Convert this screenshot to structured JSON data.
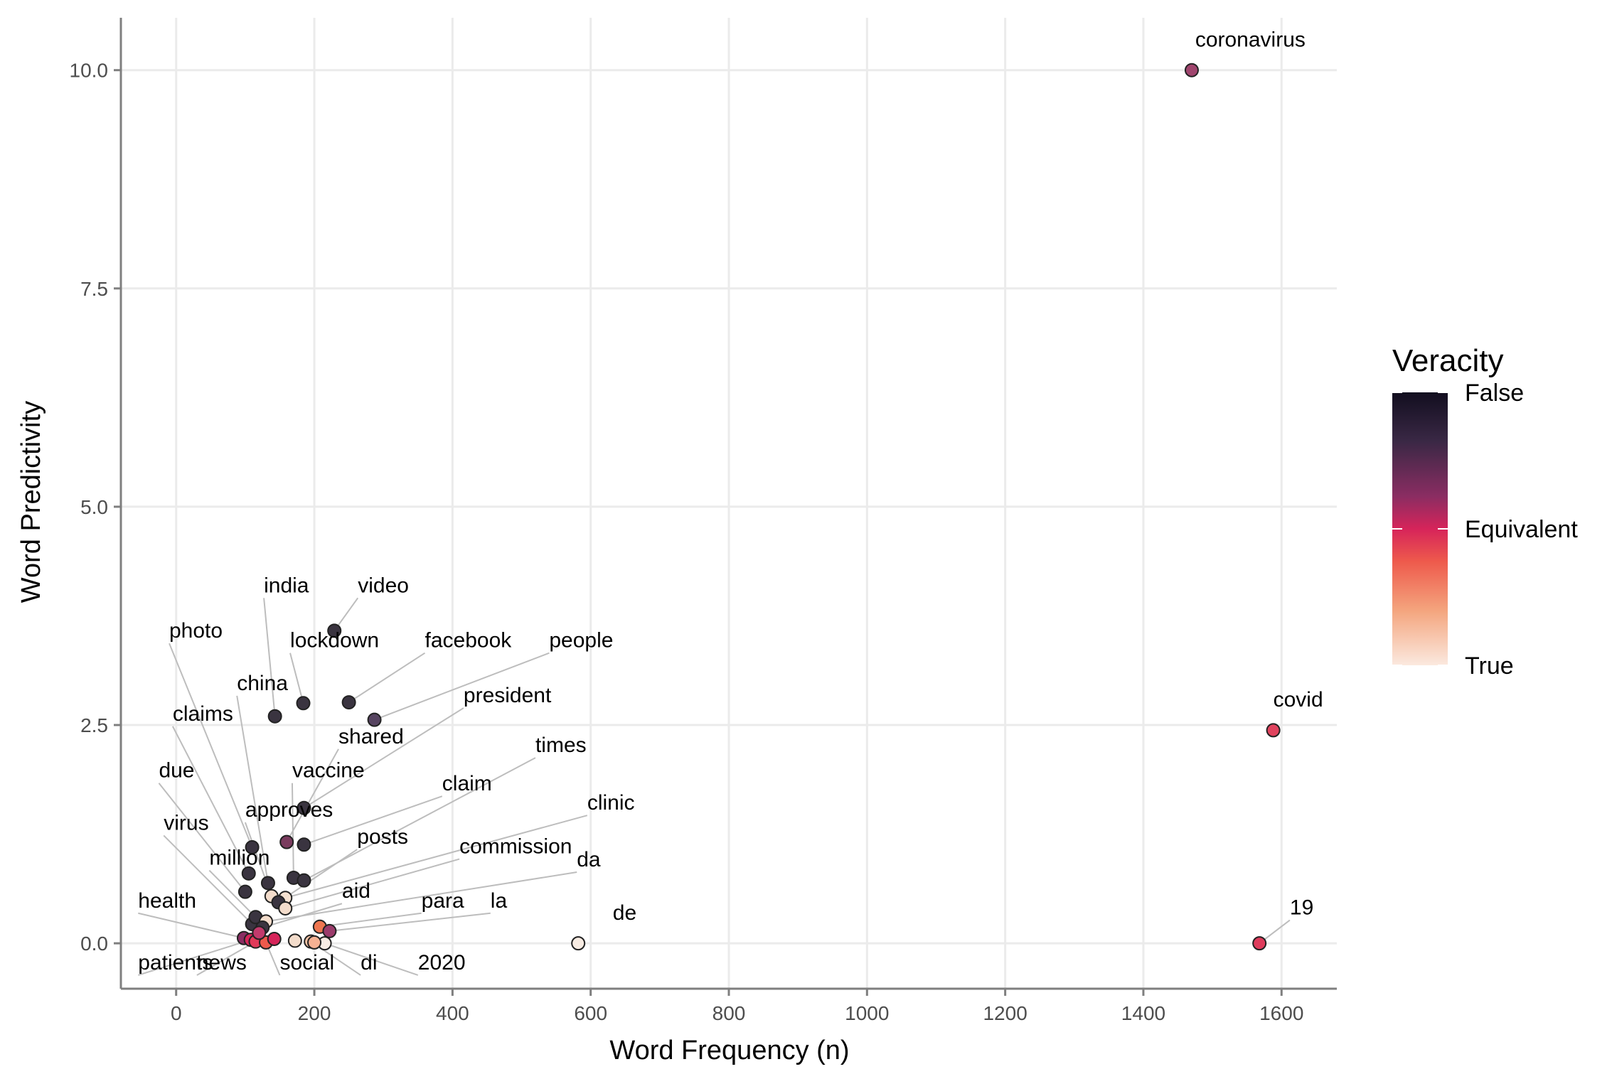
{
  "chart_data": {
    "type": "scatter",
    "xlabel": "Word Frequency (n)",
    "ylabel": "Word Predictivity",
    "xlim": [
      -80,
      1680
    ],
    "ylim": [
      -0.52,
      10.6
    ],
    "x_ticks": [
      0,
      200,
      400,
      600,
      800,
      1000,
      1200,
      1400,
      1600
    ],
    "x_tick_labels": [
      "0",
      "200",
      "400",
      "600",
      "800",
      "1000",
      "1200",
      "1400",
      "1600"
    ],
    "y_ticks": [
      0,
      2.5,
      5,
      7.5,
      10
    ],
    "y_tick_labels": [
      "0.0",
      "2.5",
      "5.0",
      "7.5",
      "10.0"
    ],
    "grid": true,
    "legend": {
      "title": "Veracity",
      "position": "right",
      "labels": [
        "False",
        "Equivalent",
        "True"
      ],
      "colors": [
        "#120e1f",
        "#3a2845",
        "#8a2d62",
        "#d6245a",
        "#ee5a4c",
        "#f4a57e",
        "#fbe9df"
      ]
    },
    "points": [
      {
        "word": "coronavirus",
        "x": 1470,
        "y": 10.0,
        "color": "#a0456e",
        "lx": 1475,
        "ly": 10.27,
        "leader": false
      },
      {
        "word": "covid",
        "x": 1588,
        "y": 2.44,
        "color": "#e0435e",
        "lx": 1588,
        "ly": 2.71,
        "leader": false
      },
      {
        "word": "19",
        "x": 1568,
        "y": 0.0,
        "color": "#df3c5c",
        "lx": 1612,
        "ly": 0.33,
        "leader": true
      },
      {
        "word": "de",
        "x": 582,
        "y": 0.0,
        "color": "#f8ece3",
        "lx": 632,
        "ly": 0.27,
        "leader": false
      },
      {
        "word": "video",
        "x": 229,
        "y": 3.58,
        "color": "#3a3440",
        "lx": 263,
        "ly": 4.02,
        "leader": true
      },
      {
        "word": "india",
        "x": 143,
        "y": 2.6,
        "color": "#3a3440",
        "lx": 127,
        "ly": 4.02,
        "leader": true
      },
      {
        "word": "lockdown",
        "x": 184,
        "y": 2.75,
        "color": "#3a3440",
        "lx": 165,
        "ly": 3.39,
        "leader": true
      },
      {
        "word": "facebook",
        "x": 250,
        "y": 2.76,
        "color": "#3a3440",
        "lx": 360,
        "ly": 3.39,
        "leader": true
      },
      {
        "word": "people",
        "x": 287,
        "y": 2.56,
        "color": "#574461",
        "lx": 540,
        "ly": 3.39,
        "leader": true
      },
      {
        "word": "president",
        "x": 185,
        "y": 1.55,
        "color": "#3a3440",
        "lx": 416,
        "ly": 2.76,
        "leader": true
      },
      {
        "word": "shared",
        "x": 160,
        "y": 1.16,
        "color": "#7a3b5e",
        "lx": 235,
        "ly": 2.29,
        "leader": true
      },
      {
        "word": "photo",
        "x": 110,
        "y": 1.1,
        "color": "#3a3440",
        "lx": -10,
        "ly": 3.5,
        "leader": true
      },
      {
        "word": "china",
        "x": 133,
        "y": 0.69,
        "color": "#3a3440",
        "lx": 88,
        "ly": 2.9,
        "leader": true
      },
      {
        "word": "claims",
        "x": 105,
        "y": 0.8,
        "color": "#3a3440",
        "lx": -5,
        "ly": 2.55,
        "leader": true
      },
      {
        "word": "vaccine",
        "x": 170,
        "y": 0.75,
        "color": "#3a3440",
        "lx": 168,
        "ly": 1.9,
        "leader": true
      },
      {
        "word": "times",
        "x": 185,
        "y": 0.72,
        "color": "#3a3440",
        "lx": 520,
        "ly": 2.19,
        "leader": true
      },
      {
        "word": "claim",
        "x": 185,
        "y": 1.13,
        "color": "#3a3440",
        "lx": 385,
        "ly": 1.75,
        "leader": true
      },
      {
        "word": "due",
        "x": 100,
        "y": 0.59,
        "color": "#3a3440",
        "lx": -25,
        "ly": 1.9,
        "leader": true
      },
      {
        "word": "approves",
        "x": 138,
        "y": 0.54,
        "color": "#f3dccb",
        "lx": 100,
        "ly": 1.45,
        "leader": true
      },
      {
        "word": "clinic",
        "x": 158,
        "y": 0.52,
        "color": "#f5e1d1",
        "lx": 595,
        "ly": 1.53,
        "leader": true
      },
      {
        "word": "posts",
        "x": 148,
        "y": 0.47,
        "color": "#3a3440",
        "lx": 262,
        "ly": 1.14,
        "leader": true
      },
      {
        "word": "commission",
        "x": 158,
        "y": 0.4,
        "color": "#f3dccb",
        "lx": 410,
        "ly": 1.03,
        "leader": true
      },
      {
        "word": "virus",
        "x": 110,
        "y": 0.22,
        "color": "#3a3440",
        "lx": -18,
        "ly": 1.3,
        "leader": true
      },
      {
        "word": "million",
        "x": 115,
        "y": 0.3,
        "color": "#3a3440",
        "lx": 48,
        "ly": 0.9,
        "leader": true
      },
      {
        "word": "da",
        "x": 130,
        "y": 0.25,
        "color": "#f3dccb",
        "lx": 580,
        "ly": 0.88,
        "leader": true
      },
      {
        "word": "aid",
        "x": 125,
        "y": 0.18,
        "color": "#3a3440",
        "lx": 240,
        "ly": 0.52,
        "leader": true
      },
      {
        "word": "para",
        "x": 208,
        "y": 0.19,
        "color": "#ee7650",
        "lx": 355,
        "ly": 0.41,
        "leader": true
      },
      {
        "word": "la",
        "x": 222,
        "y": 0.14,
        "color": "#9b3b6b",
        "lx": 455,
        "ly": 0.41,
        "leader": true
      },
      {
        "word": "health",
        "x": 98,
        "y": 0.06,
        "color": "#8a2d62",
        "lx": -55,
        "ly": 0.41,
        "leader": true
      },
      {
        "word": "patients",
        "x": 108,
        "y": 0.04,
        "color": "#d6245a",
        "lx": -55,
        "ly": -0.3,
        "leader": true
      },
      {
        "word": "news",
        "x": 115,
        "y": 0.02,
        "color": "#e13a5a",
        "lx": 30,
        "ly": -0.3,
        "leader": true
      },
      {
        "word": "social",
        "x": 130,
        "y": 0.01,
        "color": "#ee5a4c",
        "lx": 150,
        "ly": -0.3,
        "leader": true
      },
      {
        "word": "di",
        "x": 195,
        "y": 0.02,
        "color": "#f6c3a6",
        "lx": 267,
        "ly": -0.3,
        "leader": true
      },
      {
        "word": "2020",
        "x": 215,
        "y": 0.0,
        "color": "#f8ece3",
        "lx": 350,
        "ly": -0.3,
        "leader": true
      },
      {
        "word": "",
        "x": 120,
        "y": 0.12,
        "color": "#c23a6c",
        "leader": false
      },
      {
        "word": "",
        "x": 142,
        "y": 0.05,
        "color": "#d6245a",
        "leader": false
      },
      {
        "word": "",
        "x": 172,
        "y": 0.03,
        "color": "#f3dccb",
        "leader": false
      },
      {
        "word": "",
        "x": 200,
        "y": 0.01,
        "color": "#f6b193",
        "leader": false
      }
    ]
  }
}
